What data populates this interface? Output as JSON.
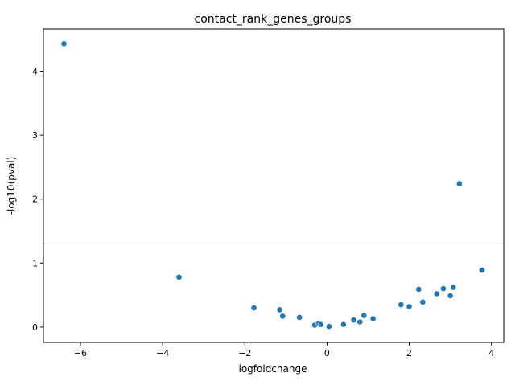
{
  "chart_data": {
    "type": "scatter",
    "title": "contact_rank_genes_groups",
    "xlabel": "logfoldchange",
    "ylabel": "-log10(pval)",
    "xlim": [
      -6.9,
      4.3
    ],
    "ylim": [
      -0.24,
      4.66
    ],
    "xticks": [
      -6,
      -4,
      -2,
      0,
      2,
      4
    ],
    "xtick_labels": [
      "−6",
      "−4",
      "−2",
      "0",
      "2",
      "4"
    ],
    "yticks": [
      0,
      1,
      2,
      3,
      4
    ],
    "ytick_labels": [
      "0",
      "1",
      "2",
      "3",
      "4"
    ],
    "grid": false,
    "legend": "none",
    "point_color": "#1f77b4",
    "threshold_line": {
      "y": 1.3,
      "color": "#cccccc"
    },
    "points": [
      {
        "x": -6.4,
        "y": 4.43
      },
      {
        "x": -3.6,
        "y": 0.78
      },
      {
        "x": -1.78,
        "y": 0.3
      },
      {
        "x": -1.15,
        "y": 0.27
      },
      {
        "x": -1.08,
        "y": 0.17
      },
      {
        "x": -0.67,
        "y": 0.15
      },
      {
        "x": -0.3,
        "y": 0.03
      },
      {
        "x": -0.2,
        "y": 0.06
      },
      {
        "x": -0.15,
        "y": 0.04
      },
      {
        "x": 0.05,
        "y": 0.01
      },
      {
        "x": 0.4,
        "y": 0.04
      },
      {
        "x": 0.65,
        "y": 0.11
      },
      {
        "x": 0.8,
        "y": 0.08
      },
      {
        "x": 0.9,
        "y": 0.18
      },
      {
        "x": 1.12,
        "y": 0.13
      },
      {
        "x": 1.8,
        "y": 0.35
      },
      {
        "x": 2.0,
        "y": 0.32
      },
      {
        "x": 2.23,
        "y": 0.59
      },
      {
        "x": 2.33,
        "y": 0.39
      },
      {
        "x": 2.67,
        "y": 0.52
      },
      {
        "x": 2.83,
        "y": 0.6
      },
      {
        "x": 3.0,
        "y": 0.49
      },
      {
        "x": 3.07,
        "y": 0.62
      },
      {
        "x": 3.22,
        "y": 2.24
      },
      {
        "x": 3.77,
        "y": 0.89
      }
    ]
  }
}
